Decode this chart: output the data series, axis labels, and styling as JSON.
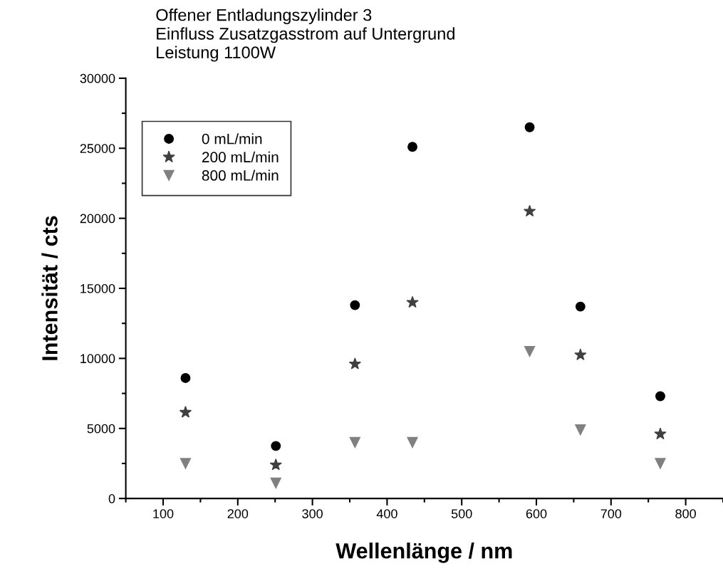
{
  "chart_data": {
    "type": "scatter",
    "title": "Offener Entladungszylinder 3\nEinfluss Zusatzgasstrom auf Untergrund\nLeistung 1100W",
    "xlabel": "Wellenlänge / nm",
    "ylabel": "Intensität / cts",
    "x": [
      130,
      251,
      357,
      434,
      591,
      659,
      766
    ],
    "series": [
      {
        "name": "0 mL/min",
        "color": "#000000",
        "marker": "circle",
        "values": [
          8600,
          3750,
          13800,
          25100,
          26500,
          13700,
          7300
        ]
      },
      {
        "name": "200 mL/min",
        "color": "#404040",
        "marker": "star",
        "values": [
          6150,
          2400,
          9600,
          14000,
          20500,
          10250,
          4600
        ]
      },
      {
        "name": "800 mL/min",
        "color": "#808080",
        "marker": "triangle",
        "values": [
          2500,
          1100,
          4000,
          4000,
          10500,
          4900,
          2500
        ]
      }
    ],
    "xlim": [
      50,
      850
    ],
    "xticks": [
      100,
      200,
      300,
      400,
      500,
      600,
      700,
      800
    ],
    "ylim": [
      0,
      30000
    ],
    "yticks": [
      0,
      5000,
      10000,
      15000,
      20000,
      25000,
      30000
    ],
    "grid": false,
    "legend": "top left"
  }
}
